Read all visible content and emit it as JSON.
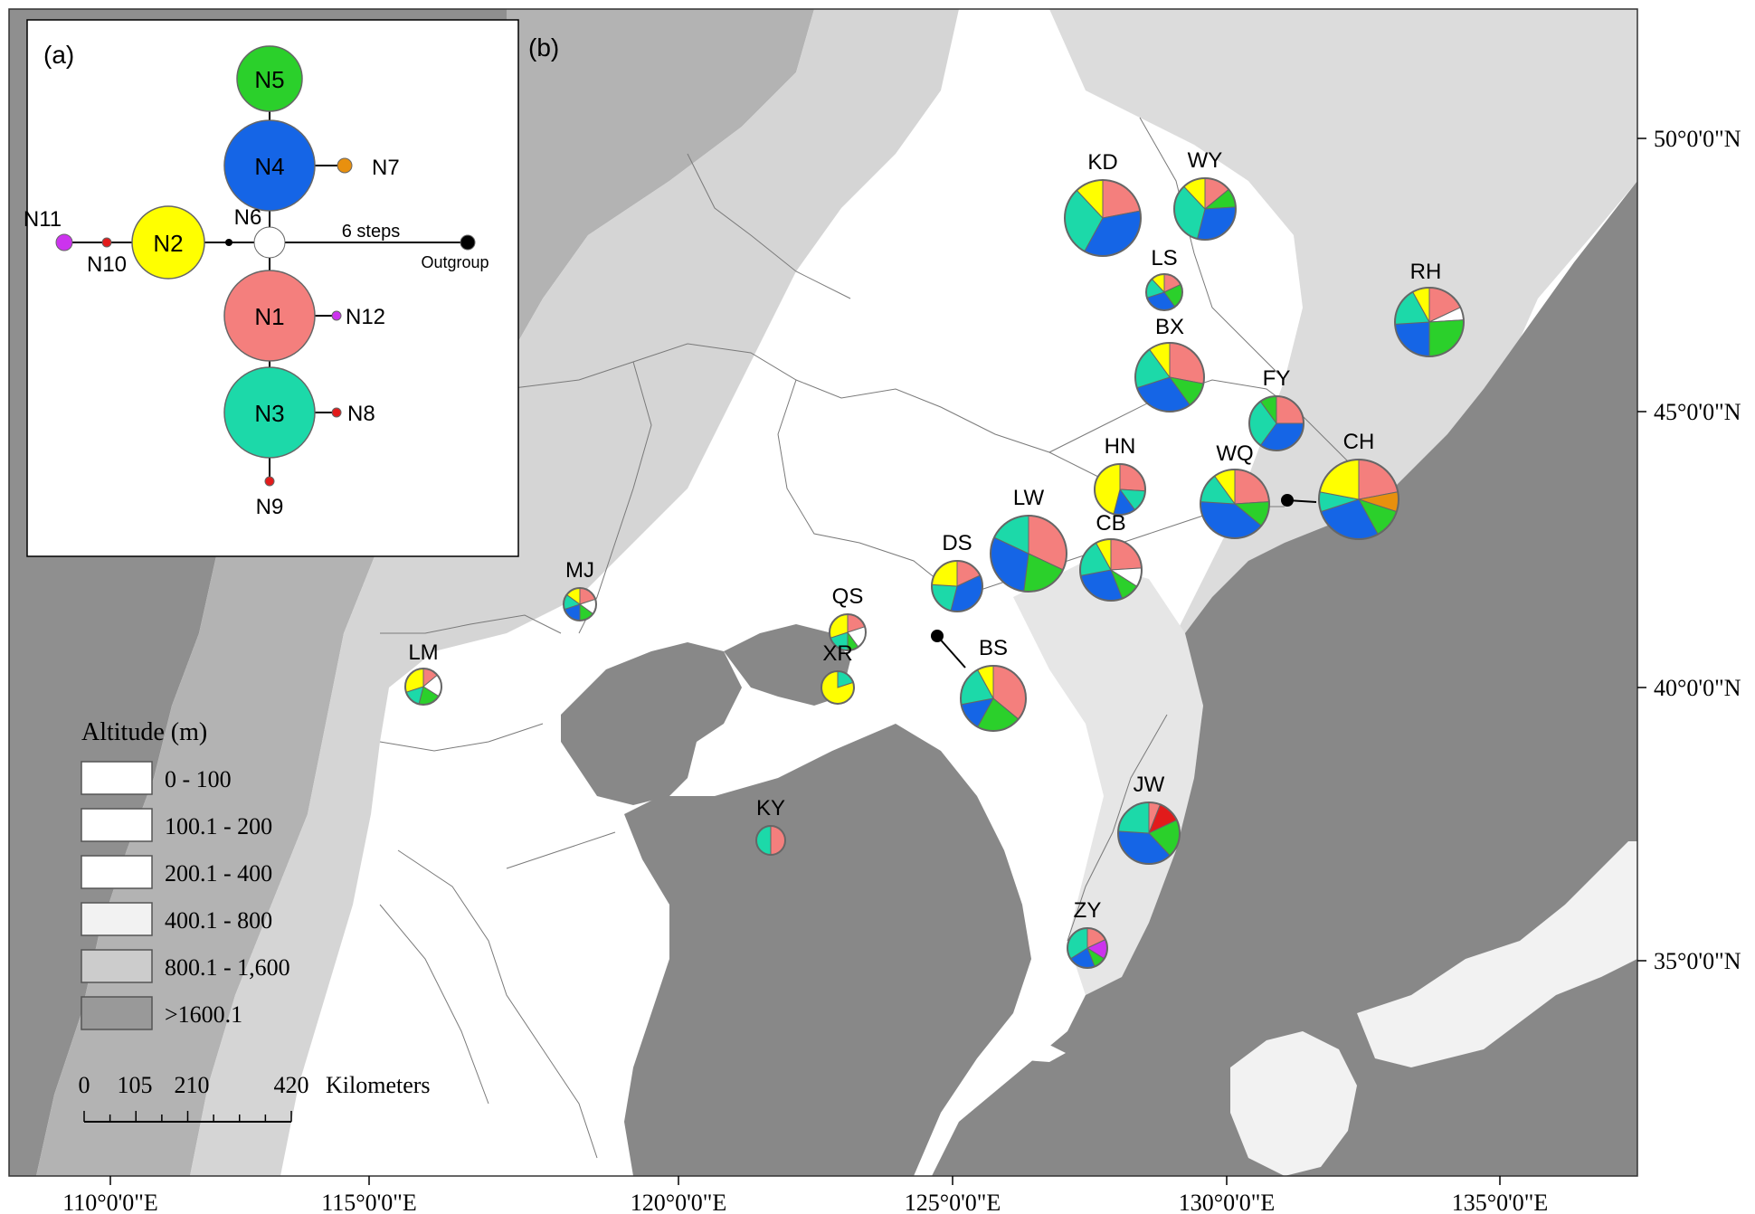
{
  "panel_a_label": "(a)",
  "panel_b_label": "(b)",
  "colors": {
    "N1": "#f47f7d",
    "N2": "#ffff00",
    "N3": "#1cd9a9",
    "N4": "#1565e6",
    "N5": "#2bd02b",
    "N6": "#ffffff",
    "N7": "#e8900e",
    "N8": "#e21b1b",
    "N9": "#e21b1b",
    "N10": "#e21b1b",
    "N11": "#cc33ee",
    "N12": "#cc33ee",
    "outgroup": "#000000",
    "sea": "#888888",
    "high": "#999999",
    "mid": "#c4c4c4",
    "low_mid": "#dadada",
    "low": "#ffffff"
  },
  "network": {
    "nodes": [
      {
        "id": "N5",
        "label": "N5"
      },
      {
        "id": "N4",
        "label": "N4"
      },
      {
        "id": "N7",
        "label": "N7"
      },
      {
        "id": "N11",
        "label": "N11"
      },
      {
        "id": "N10",
        "label": "N10"
      },
      {
        "id": "N2",
        "label": "N2"
      },
      {
        "id": "N6",
        "label": "N6"
      },
      {
        "id": "N1",
        "label": "N1"
      },
      {
        "id": "N12",
        "label": "N12"
      },
      {
        "id": "N3",
        "label": "N3"
      },
      {
        "id": "N8",
        "label": "N8"
      },
      {
        "id": "N9",
        "label": "N9"
      },
      {
        "id": "outgroup",
        "label": "Outgroup"
      }
    ],
    "steps_label": "6 steps"
  },
  "populations": [
    {
      "code": "KD",
      "slices": [
        [
          "N1",
          22
        ],
        [
          "N4",
          36
        ],
        [
          "N3",
          30
        ],
        [
          "N2",
          12
        ]
      ]
    },
    {
      "code": "WY",
      "slices": [
        [
          "N1",
          14
        ],
        [
          "N5",
          10
        ],
        [
          "N4",
          30
        ],
        [
          "N3",
          34
        ],
        [
          "N2",
          12
        ]
      ]
    },
    {
      "code": "LS",
      "slices": [
        [
          "N1",
          18
        ],
        [
          "N5",
          22
        ],
        [
          "N4",
          30
        ],
        [
          "N3",
          18
        ],
        [
          "N2",
          12
        ]
      ]
    },
    {
      "code": "RH",
      "slices": [
        [
          "N1",
          18
        ],
        [
          "N6",
          6
        ],
        [
          "N5",
          26
        ],
        [
          "N4",
          24
        ],
        [
          "N3",
          18
        ],
        [
          "N2",
          8
        ]
      ]
    },
    {
      "code": "BX",
      "slices": [
        [
          "N1",
          28
        ],
        [
          "N5",
          12
        ],
        [
          "N4",
          30
        ],
        [
          "N3",
          20
        ],
        [
          "N2",
          10
        ]
      ]
    },
    {
      "code": "FY",
      "slices": [
        [
          "N1",
          25
        ],
        [
          "N4",
          35
        ],
        [
          "N3",
          30
        ],
        [
          "N5",
          10
        ]
      ]
    },
    {
      "code": "HN",
      "slices": [
        [
          "N1",
          26
        ],
        [
          "N3",
          14
        ],
        [
          "N4",
          14
        ],
        [
          "N2",
          46
        ]
      ]
    },
    {
      "code": "WQ",
      "slices": [
        [
          "N1",
          24
        ],
        [
          "N5",
          12
        ],
        [
          "N4",
          40
        ],
        [
          "N3",
          14
        ],
        [
          "N2",
          10
        ]
      ]
    },
    {
      "code": "CH",
      "slices": [
        [
          "N1",
          22
        ],
        [
          "N7",
          8
        ],
        [
          "N5",
          12
        ],
        [
          "N4",
          28
        ],
        [
          "N3",
          8
        ],
        [
          "N2",
          22
        ]
      ]
    },
    {
      "code": "LW",
      "slices": [
        [
          "N1",
          32
        ],
        [
          "N5",
          20
        ],
        [
          "N4",
          30
        ],
        [
          "N3",
          18
        ]
      ]
    },
    {
      "code": "CB",
      "slices": [
        [
          "N1",
          24
        ],
        [
          "N6",
          10
        ],
        [
          "N5",
          10
        ],
        [
          "N4",
          28
        ],
        [
          "N3",
          20
        ],
        [
          "N2",
          8
        ]
      ]
    },
    {
      "code": "DS",
      "slices": [
        [
          "N1",
          18
        ],
        [
          "N4",
          36
        ],
        [
          "N3",
          22
        ],
        [
          "N2",
          24
        ]
      ]
    },
    {
      "code": "MJ",
      "slices": [
        [
          "N1",
          20
        ],
        [
          "N6",
          15
        ],
        [
          "N5",
          15
        ],
        [
          "N4",
          20
        ],
        [
          "N3",
          15
        ],
        [
          "N2",
          15
        ]
      ]
    },
    {
      "code": "QS",
      "slices": [
        [
          "N1",
          20
        ],
        [
          "N6",
          20
        ],
        [
          "N5",
          10
        ],
        [
          "N3",
          20
        ],
        [
          "N2",
          30
        ]
      ]
    },
    {
      "code": "XR",
      "slices": [
        [
          "N3",
          20
        ],
        [
          "N2",
          80
        ]
      ]
    },
    {
      "code": "LM",
      "slices": [
        [
          "N1",
          14
        ],
        [
          "N6",
          20
        ],
        [
          "N5",
          20
        ],
        [
          "N3",
          16
        ],
        [
          "N2",
          30
        ]
      ]
    },
    {
      "code": "BS",
      "slices": [
        [
          "N1",
          36
        ],
        [
          "N5",
          22
        ],
        [
          "N4",
          14
        ],
        [
          "N3",
          20
        ],
        [
          "N2",
          8
        ]
      ]
    },
    {
      "code": "JW",
      "slices": [
        [
          "N1",
          6
        ],
        [
          "N8",
          12
        ],
        [
          "N5",
          20
        ],
        [
          "N4",
          38
        ],
        [
          "N3",
          24
        ]
      ]
    },
    {
      "code": "KY",
      "slices": [
        [
          "N1",
          50
        ],
        [
          "N3",
          50
        ]
      ]
    },
    {
      "code": "ZY",
      "slices": [
        [
          "N1",
          18
        ],
        [
          "N11",
          16
        ],
        [
          "N5",
          10
        ],
        [
          "N4",
          22
        ],
        [
          "N3",
          34
        ]
      ]
    }
  ],
  "legend": {
    "title": "Altitude (m)",
    "classes": [
      "0 - 100",
      "100.1 - 200",
      "200.1 - 400",
      "400.1 - 800",
      "800.1 - 1,600",
      ">1600.1"
    ],
    "class_colors": [
      "#ffffff",
      "#ffffff",
      "#ffffff",
      "#f2f2f2",
      "#cccccc",
      "#999999"
    ]
  },
  "scalebar": {
    "ticks": [
      "0",
      "105",
      "210",
      "420"
    ],
    "unit": "Kilometers"
  },
  "axes": {
    "x_ticks": [
      "110°0'0\"E",
      "115°0'0\"E",
      "120°0'0\"E",
      "125°0'0\"E",
      "130°0'0\"E",
      "135°0'0\"E"
    ],
    "y_ticks": [
      "50°0'0\"N",
      "45°0'0\"N",
      "40°0'0\"N",
      "35°0'0\"N"
    ]
  }
}
